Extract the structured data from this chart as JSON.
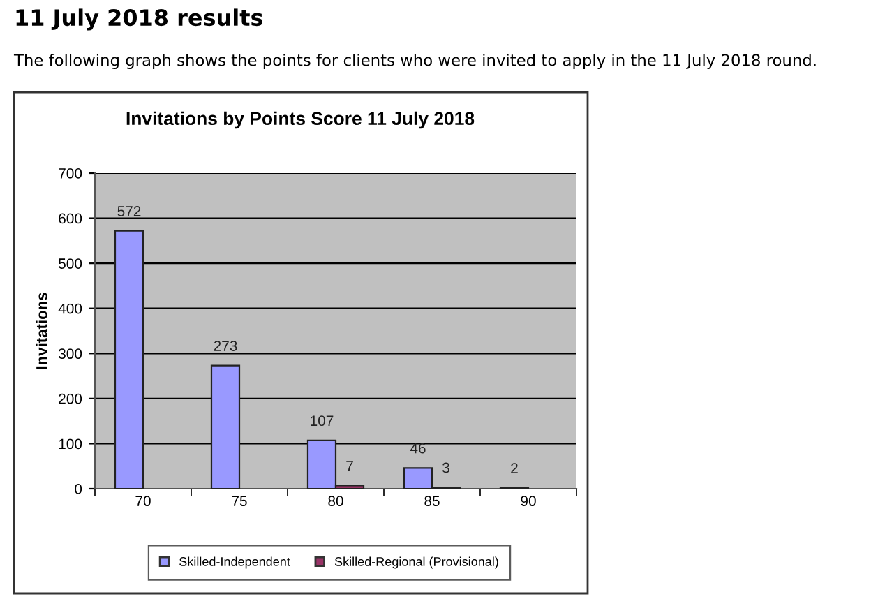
{
  "chart_data": {
    "type": "bar",
    "title": "Invitations by Points Score 11 July 2018",
    "ylabel": "Invitations",
    "categories": [
      "70",
      "75",
      "80",
      "85",
      "90"
    ],
    "series": [
      {
        "name": "Skilled-Independent",
        "color": "#9999ff",
        "values": [
          572,
          273,
          107,
          46,
          2
        ]
      },
      {
        "name": "Skilled-Regional (Provisional)",
        "color": "#993366",
        "values": [
          null,
          null,
          7,
          3,
          null
        ]
      }
    ],
    "ylim": [
      0,
      700
    ],
    "yticks": [
      0,
      100,
      200,
      300,
      400,
      500,
      600,
      700
    ],
    "grid": "y",
    "legend": "bottom",
    "data_labels": true,
    "annotations": [
      "11 July 2018 results",
      "The following graph shows the points for clients who were invited to apply in the 11 July 2018 round."
    ]
  }
}
